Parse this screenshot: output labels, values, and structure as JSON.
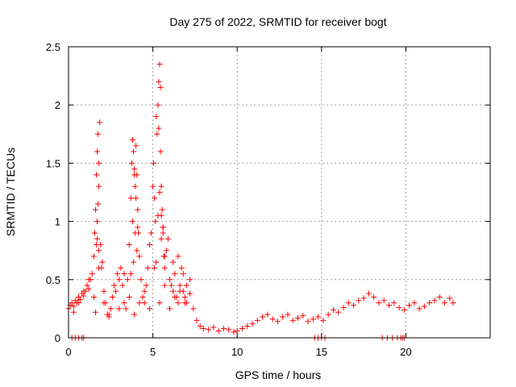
{
  "chart_data": {
    "type": "scatter",
    "title": "Day 275 of 2022, SRMTID for receiver bogt",
    "xlabel": "GPS time / hours",
    "ylabel": "SRMTID / TECUs",
    "xlim": [
      0,
      25
    ],
    "ylim": [
      0,
      2.5
    ],
    "xticks": [
      0,
      5,
      10,
      15,
      20
    ],
    "xtick_labels": [
      "0",
      "5",
      "10",
      "15",
      "20"
    ],
    "yticks": [
      0,
      0.5,
      1,
      1.5,
      2,
      2.5
    ],
    "ytick_labels": [
      "0",
      "0.5",
      "1",
      "1.5",
      "2",
      "2.5"
    ],
    "grid": true,
    "marker": "+",
    "color": "#ff0000",
    "series": [
      {
        "name": "SRMTID",
        "x": [
          0.0,
          0.1,
          0.2,
          0.3,
          0.4,
          0.5,
          0.6,
          0.7,
          0.8,
          0.9,
          1.0,
          1.1,
          1.2,
          1.3,
          1.4,
          1.5,
          1.55,
          1.6,
          1.65,
          1.7,
          1.75,
          1.8,
          1.85,
          1.9,
          1.95,
          2.0,
          2.1,
          2.2,
          2.3,
          2.4,
          2.5,
          2.6,
          2.7,
          2.8,
          2.9,
          3.0,
          3.1,
          3.2,
          3.3,
          3.4,
          3.5,
          3.6,
          3.7,
          3.75,
          3.8,
          3.85,
          3.9,
          3.95,
          4.0,
          4.05,
          4.1,
          4.15,
          4.2,
          4.3,
          4.4,
          4.5,
          4.6,
          4.7,
          4.8,
          4.9,
          5.0,
          5.05,
          5.1,
          5.15,
          5.2,
          5.25,
          5.3,
          5.35,
          5.4,
          5.45,
          5.5,
          5.55,
          5.6,
          5.65,
          5.7,
          5.8,
          5.9,
          6.0,
          6.1,
          6.2,
          6.3,
          6.4,
          6.5,
          6.6,
          6.7,
          6.8,
          6.9,
          7.0,
          7.2,
          7.4,
          7.6,
          7.8,
          8.0,
          8.3,
          8.6,
          8.9,
          9.2,
          9.5,
          9.8,
          10.0,
          10.3,
          10.6,
          10.9,
          11.2,
          11.5,
          11.8,
          12.1,
          12.4,
          12.7,
          13.0,
          13.3,
          13.6,
          13.9,
          14.2,
          14.5,
          14.8,
          15.1,
          15.4,
          15.7,
          16.0,
          16.3,
          16.6,
          16.9,
          17.2,
          17.5,
          17.8,
          18.1,
          18.4,
          18.7,
          19.0,
          19.3,
          19.6,
          19.9,
          20.2,
          20.5,
          20.8,
          21.1,
          21.4,
          21.7,
          22.0,
          22.3,
          22.6,
          22.8,
          0.3,
          0.6,
          0.9,
          1.2,
          1.5,
          1.8,
          2.1,
          2.4,
          2.7,
          3.0,
          3.3,
          3.6,
          3.9,
          4.2,
          4.5,
          4.8,
          5.1,
          5.4,
          5.7,
          6.0,
          6.3,
          6.6,
          6.9,
          7.2,
          1.6,
          1.7,
          1.8,
          1.65,
          1.75,
          3.7,
          3.8,
          3.9,
          4.0,
          4.1,
          5.3,
          5.4,
          5.5,
          5.45,
          5.35,
          5.6,
          1.7,
          1.8,
          3.85,
          3.95,
          4.05,
          5.2,
          5.5,
          5.6,
          5.7,
          6.2,
          6.5,
          6.8,
          7.0,
          0.2,
          0.4,
          0.6,
          0.8,
          0.9,
          18.6,
          18.9,
          19.2,
          19.5,
          19.7,
          19.8,
          19.9,
          14.6,
          14.8,
          15.0,
          15.2
        ],
        "y": [
          0.25,
          0.28,
          0.3,
          0.27,
          0.32,
          0.3,
          0.35,
          0.33,
          0.38,
          0.36,
          0.4,
          0.45,
          0.42,
          0.5,
          0.55,
          0.7,
          0.9,
          1.1,
          1.4,
          1.6,
          1.75,
          1.5,
          1.85,
          0.8,
          0.6,
          0.65,
          0.4,
          0.3,
          0.2,
          0.18,
          0.25,
          0.35,
          0.45,
          0.4,
          0.55,
          0.5,
          0.6,
          0.45,
          0.3,
          0.25,
          0.5,
          0.8,
          1.2,
          1.5,
          1.7,
          1.6,
          1.45,
          1.3,
          1.65,
          1.4,
          1.1,
          0.9,
          0.7,
          0.5,
          0.35,
          0.3,
          0.45,
          0.6,
          0.8,
          0.9,
          1.3,
          1.5,
          1.2,
          1.0,
          1.9,
          1.75,
          2.0,
          2.2,
          2.35,
          1.6,
          1.3,
          1.1,
          0.9,
          0.7,
          0.6,
          0.75,
          0.85,
          0.5,
          0.45,
          0.4,
          0.55,
          0.35,
          0.3,
          0.45,
          0.6,
          0.4,
          0.35,
          0.3,
          0.38,
          0.25,
          0.15,
          0.1,
          0.08,
          0.07,
          0.09,
          0.06,
          0.08,
          0.07,
          0.05,
          0.06,
          0.08,
          0.1,
          0.12,
          0.15,
          0.18,
          0.2,
          0.16,
          0.14,
          0.18,
          0.2,
          0.15,
          0.17,
          0.19,
          0.14,
          0.16,
          0.18,
          0.15,
          0.2,
          0.24,
          0.22,
          0.26,
          0.3,
          0.28,
          0.32,
          0.34,
          0.38,
          0.35,
          0.3,
          0.32,
          0.28,
          0.3,
          0.26,
          0.24,
          0.28,
          0.3,
          0.25,
          0.27,
          0.3,
          0.32,
          0.35,
          0.3,
          0.34,
          0.3,
          0.22,
          0.3,
          0.4,
          0.5,
          0.35,
          0.6,
          0.3,
          0.2,
          0.45,
          0.25,
          0.55,
          0.35,
          0.2,
          0.3,
          0.4,
          0.25,
          0.6,
          0.3,
          0.45,
          0.25,
          0.35,
          0.4,
          0.3,
          0.5,
          0.22,
          1.0,
          1.3,
          0.8,
          1.15,
          0.55,
          1.0,
          1.4,
          1.2,
          0.95,
          1.05,
          1.25,
          1.05,
          2.15,
          1.8,
          0.95,
          0.85,
          0.75,
          0.65,
          0.9,
          0.75,
          0.65,
          0.85,
          0.95,
          0.7,
          0.65,
          0.7,
          0.55,
          0.45,
          0.0,
          0.0,
          0.0,
          0.0,
          0.0,
          0.0,
          0.0,
          0.0,
          0.0,
          0.0,
          0.0,
          0.0,
          0.0,
          0.0,
          0.0,
          0.0
        ]
      }
    ]
  }
}
